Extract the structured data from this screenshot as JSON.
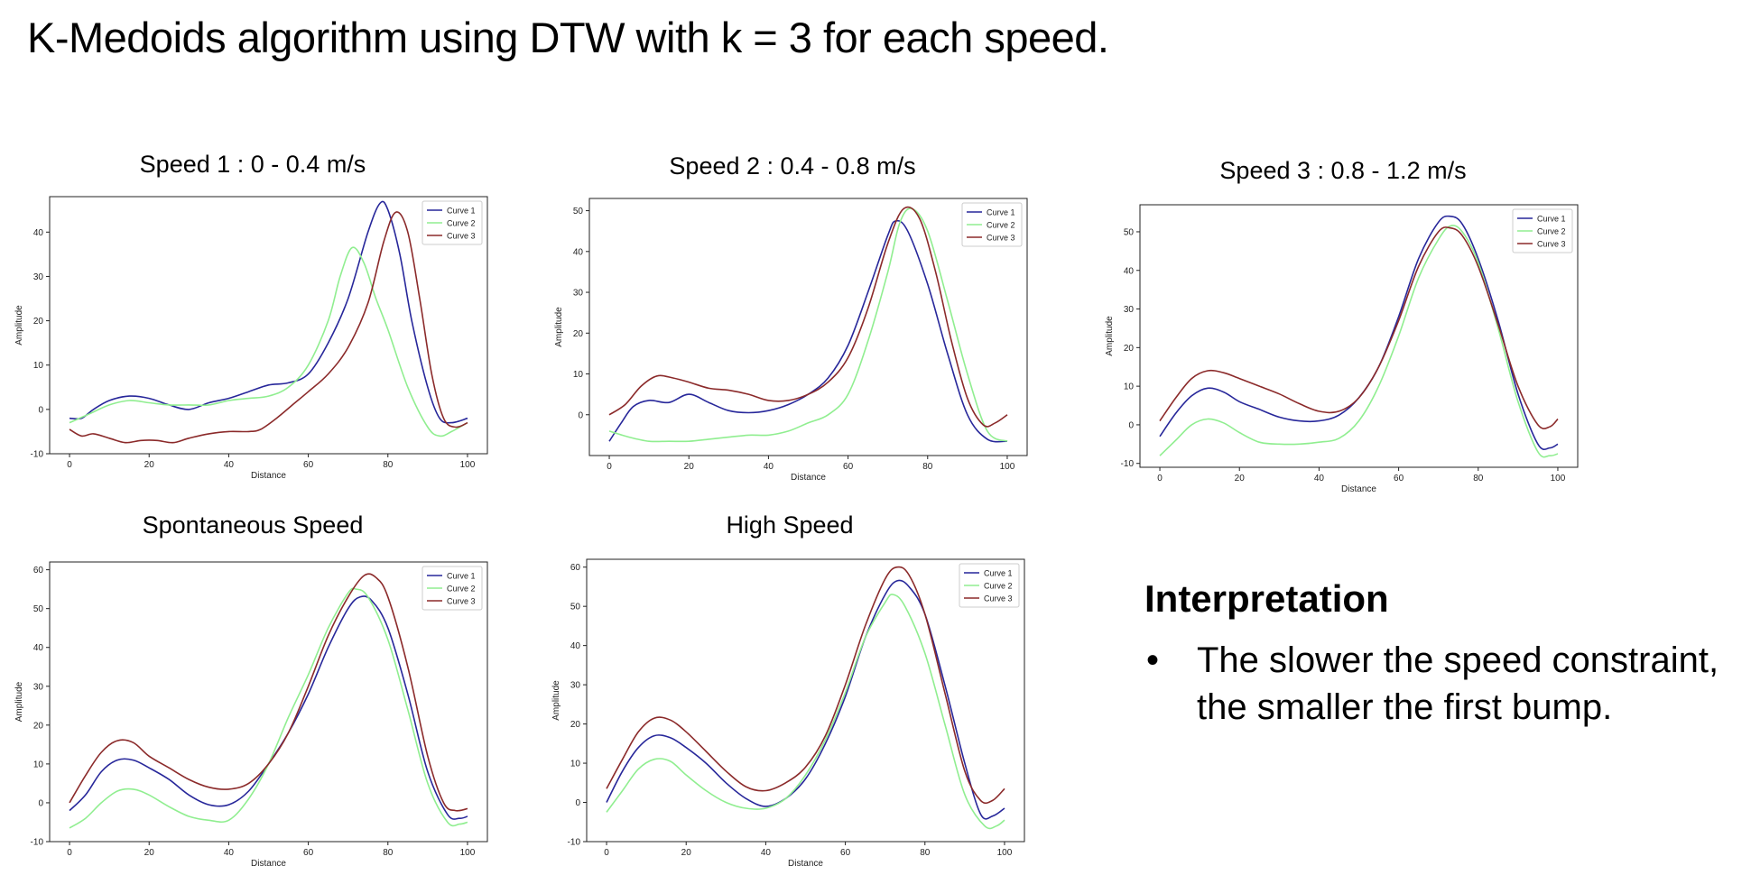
{
  "slide": {
    "title": "K-Medoids algorithm using DTW with k = 3 for each speed."
  },
  "colors": {
    "curve1": "#27279a",
    "curve2": "#90ee90",
    "curve3": "#8b2a2a"
  },
  "interpretation": {
    "heading": "Interpretation",
    "bullet": "•",
    "items": [
      "The slower the speed constraint, the smaller the first bump."
    ]
  },
  "chart_data": [
    {
      "id": "speed1",
      "type": "line",
      "title": "Speed 1 : 0 - 0.4 m/s",
      "xlabel": "Distance",
      "ylabel": "Amplitude",
      "xlim": [
        -5,
        105
      ],
      "ylim": [
        -10,
        48
      ],
      "xticks": [
        0,
        20,
        40,
        60,
        80,
        100
      ],
      "yticks": [
        -10,
        0,
        10,
        20,
        30,
        40
      ],
      "legend": "top-right",
      "series": [
        {
          "name": "Curve 1",
          "color": "#27279a",
          "x": [
            0,
            3,
            6,
            10,
            15,
            20,
            25,
            30,
            35,
            40,
            45,
            50,
            55,
            60,
            65,
            70,
            75,
            78,
            80,
            83,
            86,
            90,
            93,
            96,
            100
          ],
          "y": [
            -2,
            -2,
            0,
            2,
            3,
            2.5,
            1,
            0,
            1.5,
            2.5,
            4,
            5.5,
            6,
            8,
            15,
            25,
            40,
            46.5,
            45,
            35,
            20,
            5,
            -2,
            -3,
            -2
          ]
        },
        {
          "name": "Curve 2",
          "color": "#90ee90",
          "x": [
            0,
            5,
            10,
            15,
            20,
            25,
            30,
            35,
            40,
            45,
            50,
            55,
            60,
            65,
            68,
            71,
            74,
            77,
            80,
            85,
            90,
            93,
            96,
            100
          ],
          "y": [
            -3,
            -1,
            1,
            2,
            1.5,
            1,
            1,
            1,
            2,
            2.5,
            3,
            5,
            10,
            20,
            30,
            36.5,
            33,
            25,
            18,
            5,
            -4,
            -6,
            -5,
            -3
          ]
        },
        {
          "name": "Curve 3",
          "color": "#8b2a2a",
          "x": [
            0,
            3,
            6,
            10,
            14,
            18,
            22,
            26,
            30,
            35,
            40,
            45,
            48,
            52,
            56,
            60,
            65,
            70,
            75,
            79,
            82,
            85,
            88,
            91,
            94,
            97,
            100
          ],
          "y": [
            -4.5,
            -6,
            -5.5,
            -6.5,
            -7.5,
            -7,
            -7,
            -7.5,
            -6.5,
            -5.5,
            -5,
            -5,
            -4.5,
            -2,
            1,
            4,
            8,
            14,
            24,
            38,
            44.5,
            40,
            25,
            8,
            -2,
            -4,
            -3
          ]
        }
      ]
    },
    {
      "id": "speed2",
      "type": "line",
      "title": "Speed 2 : 0.4 - 0.8 m/s",
      "xlabel": "Distance",
      "ylabel": "Amplitude",
      "xlim": [
        -5,
        105
      ],
      "ylim": [
        -10,
        53
      ],
      "xticks": [
        0,
        20,
        40,
        60,
        80,
        100
      ],
      "yticks": [
        0,
        10,
        20,
        30,
        40,
        50
      ],
      "legend": "top-right",
      "series": [
        {
          "name": "Curve 1",
          "color": "#27279a",
          "x": [
            0,
            3,
            6,
            10,
            15,
            20,
            25,
            30,
            35,
            40,
            45,
            50,
            55,
            60,
            65,
            70,
            72,
            75,
            80,
            85,
            90,
            95,
            100
          ],
          "y": [
            -6.5,
            -2,
            2,
            3.5,
            3,
            5,
            3,
            1,
            0.5,
            1,
            2.5,
            5,
            9,
            17,
            30,
            44,
            47.5,
            45,
            32,
            15,
            0,
            -6,
            -6.5
          ]
        },
        {
          "name": "Curve 2",
          "color": "#90ee90",
          "x": [
            0,
            5,
            10,
            15,
            20,
            25,
            30,
            35,
            40,
            45,
            50,
            55,
            60,
            65,
            70,
            73,
            76,
            80,
            85,
            90,
            95,
            100
          ],
          "y": [
            -4,
            -5.5,
            -6.5,
            -6.5,
            -6.5,
            -6,
            -5.5,
            -5,
            -5,
            -4,
            -2,
            0,
            5,
            18,
            35,
            47,
            50.5,
            45,
            28,
            10,
            -4,
            -6.5
          ]
        },
        {
          "name": "Curve 3",
          "color": "#8b2a2a",
          "x": [
            0,
            4,
            8,
            12,
            16,
            20,
            25,
            30,
            35,
            40,
            45,
            50,
            55,
            60,
            65,
            70,
            74,
            78,
            82,
            86,
            90,
            94,
            97,
            100
          ],
          "y": [
            0,
            2.5,
            7,
            9.5,
            9,
            8,
            6.5,
            6,
            5,
            3.5,
            3.5,
            5,
            8,
            14,
            26,
            42,
            50.5,
            48,
            35,
            18,
            4,
            -2.5,
            -2,
            0
          ]
        }
      ]
    },
    {
      "id": "speed3",
      "type": "line",
      "title": "Speed 3 : 0.8 - 1.2 m/s",
      "xlabel": "Distance",
      "ylabel": "Amplitude",
      "xlim": [
        -5,
        105
      ],
      "ylim": [
        -11,
        57
      ],
      "xticks": [
        0,
        20,
        40,
        60,
        80,
        100
      ],
      "yticks": [
        -10,
        0,
        10,
        20,
        30,
        40,
        50
      ],
      "legend": "top-right",
      "series": [
        {
          "name": "Curve 1",
          "color": "#27279a",
          "x": [
            0,
            4,
            8,
            12,
            16,
            20,
            25,
            30,
            35,
            40,
            45,
            50,
            55,
            60,
            65,
            70,
            73,
            76,
            80,
            85,
            90,
            95,
            98,
            100
          ],
          "y": [
            -3,
            3,
            7.5,
            9.5,
            8.5,
            6,
            4,
            2,
            1,
            1,
            2.5,
            7,
            15,
            28,
            43,
            52.5,
            54,
            52,
            43,
            27,
            8,
            -5,
            -6,
            -5
          ]
        },
        {
          "name": "Curve 2",
          "color": "#90ee90",
          "x": [
            0,
            4,
            8,
            12,
            16,
            20,
            25,
            30,
            35,
            40,
            45,
            50,
            55,
            60,
            65,
            70,
            73,
            76,
            80,
            85,
            90,
            95,
            98,
            100
          ],
          "y": [
            -8,
            -4,
            0,
            1.5,
            0.5,
            -2,
            -4.5,
            -5,
            -5,
            -4.5,
            -3.5,
            1,
            10,
            23,
            38,
            48,
            51.5,
            50,
            42,
            25,
            6,
            -7,
            -8,
            -7.5
          ]
        },
        {
          "name": "Curve 3",
          "color": "#8b2a2a",
          "x": [
            0,
            4,
            8,
            12,
            16,
            20,
            25,
            30,
            35,
            40,
            45,
            50,
            55,
            60,
            65,
            70,
            73,
            76,
            80,
            85,
            90,
            95,
            98,
            100
          ],
          "y": [
            1,
            7,
            12,
            14,
            13.5,
            12,
            10,
            8,
            5.5,
            3.5,
            3.5,
            7,
            15,
            27,
            41,
            50,
            51,
            49,
            41,
            26,
            10,
            0,
            -0.5,
            1.5
          ]
        }
      ]
    },
    {
      "id": "spontaneous",
      "type": "line",
      "title": "Spontaneous Speed",
      "xlabel": "Distance",
      "ylabel": "Amplitude",
      "xlim": [
        -5,
        105
      ],
      "ylim": [
        -10,
        62
      ],
      "xticks": [
        0,
        20,
        40,
        60,
        80,
        100
      ],
      "yticks": [
        -10,
        0,
        10,
        20,
        30,
        40,
        50,
        60
      ],
      "legend": "top-right",
      "series": [
        {
          "name": "Curve 1",
          "color": "#27279a",
          "x": [
            0,
            4,
            8,
            12,
            16,
            20,
            25,
            30,
            35,
            40,
            45,
            50,
            55,
            60,
            65,
            70,
            73,
            76,
            80,
            85,
            90,
            95,
            98,
            100
          ],
          "y": [
            -2,
            2,
            8,
            11,
            11,
            9,
            6,
            2,
            -0.5,
            -0.5,
            3,
            10,
            18,
            28,
            40,
            50,
            53,
            52,
            45,
            28,
            8,
            -3,
            -4,
            -3.5
          ]
        },
        {
          "name": "Curve 2",
          "color": "#90ee90",
          "x": [
            0,
            4,
            8,
            12,
            16,
            20,
            25,
            30,
            35,
            40,
            45,
            50,
            55,
            60,
            65,
            70,
            72,
            75,
            80,
            85,
            90,
            95,
            98,
            100
          ],
          "y": [
            -6.5,
            -4,
            0,
            3,
            3.5,
            2,
            -1,
            -3.5,
            -4.5,
            -4.5,
            1,
            10,
            22,
            33,
            45,
            54,
            55,
            53,
            42,
            24,
            5,
            -5,
            -5.5,
            -5
          ]
        },
        {
          "name": "Curve 3",
          "color": "#8b2a2a",
          "x": [
            0,
            4,
            8,
            12,
            16,
            20,
            25,
            30,
            35,
            40,
            45,
            50,
            55,
            60,
            65,
            70,
            74,
            77,
            80,
            85,
            90,
            94,
            97,
            100
          ],
          "y": [
            0,
            7,
            13,
            16,
            15.5,
            12,
            9,
            6,
            4,
            3.5,
            5,
            10,
            18,
            30,
            43,
            53,
            58.5,
            58,
            53,
            35,
            12,
            0,
            -2,
            -1.5
          ]
        }
      ]
    },
    {
      "id": "high",
      "type": "line",
      "title": "High Speed",
      "xlabel": "Distance",
      "ylabel": "Amplitude",
      "xlim": [
        -5,
        105
      ],
      "ylim": [
        -10,
        62
      ],
      "xticks": [
        0,
        20,
        40,
        60,
        80,
        100
      ],
      "yticks": [
        -10,
        0,
        10,
        20,
        30,
        40,
        50,
        60
      ],
      "legend": "top-right",
      "series": [
        {
          "name": "Curve 1",
          "color": "#27279a",
          "x": [
            0,
            4,
            8,
            12,
            16,
            20,
            25,
            30,
            35,
            40,
            45,
            50,
            55,
            60,
            65,
            70,
            73,
            76,
            80,
            85,
            90,
            94,
            97,
            100
          ],
          "y": [
            0,
            8,
            14,
            17,
            16.5,
            14,
            10,
            5,
            1,
            -1,
            1,
            6,
            15,
            27,
            42,
            53,
            56.5,
            55,
            48,
            30,
            10,
            -3,
            -3.5,
            -1.5
          ]
        },
        {
          "name": "Curve 2",
          "color": "#90ee90",
          "x": [
            0,
            4,
            8,
            12,
            16,
            20,
            25,
            30,
            35,
            40,
            45,
            50,
            55,
            60,
            65,
            70,
            72,
            75,
            80,
            85,
            90,
            95,
            98,
            100
          ],
          "y": [
            -2.5,
            3,
            8.5,
            11,
            10.5,
            7,
            3,
            0,
            -1.5,
            -1.5,
            1,
            7,
            16,
            28,
            42,
            51,
            53,
            50,
            38,
            20,
            2,
            -6,
            -6,
            -4.5
          ]
        },
        {
          "name": "Curve 3",
          "color": "#8b2a2a",
          "x": [
            0,
            4,
            8,
            12,
            16,
            20,
            25,
            30,
            35,
            40,
            45,
            50,
            55,
            60,
            65,
            70,
            73,
            76,
            80,
            85,
            90,
            94,
            97,
            100
          ],
          "y": [
            3.5,
            11,
            18,
            21.5,
            21,
            18,
            13,
            8,
            4,
            3,
            5,
            9,
            17,
            30,
            45,
            57,
            60,
            58,
            48,
            28,
            8,
            0.5,
            0.5,
            3.5
          ]
        }
      ]
    }
  ]
}
